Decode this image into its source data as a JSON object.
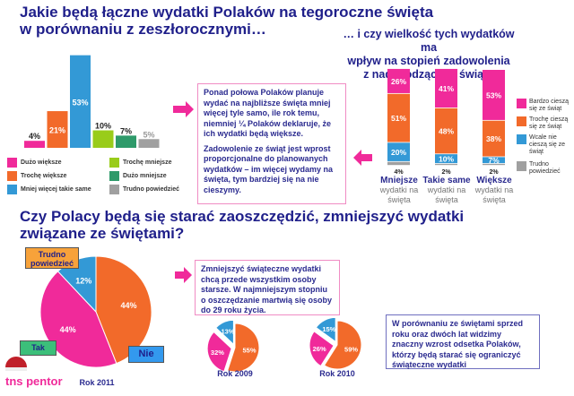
{
  "section1": {
    "title_line1": "Jakie będą łączne wydatki Polaków na tegoroczne święta",
    "title_line2": "w porównaniu z zeszłorocznymi…",
    "text_p1": "Ponad połowa Polaków planuje wydać na najbliższe święta mniej więcej tyle samo, ile rok temu, niemniej ¼ Polaków deklaruje, że ich wydatki będą większe.",
    "text_p2": "Zadowolenie ze świąt jest wprost proporcjonalne do planowanych wydatków – im więcej wydamy na święta, tym bardziej się na nie cieszymy."
  },
  "section1_right": {
    "title_line1": "… i czy wielkość tych wydatków ma",
    "title_line2": "wpływ na stopień zadowolenia",
    "title_line3": "z nadchodzących świąt?"
  },
  "section2": {
    "title_line1": "Czy Polacy będą się starać zaoszczędzić, zmniejszyć wydatki",
    "title_line2": "związane ze świętami?",
    "text_box1": "Zmniejszyć świąteczne wydatki chcą przede wszystkim osoby starsze. W najmniejszym stopniu o oszczędzanie martwią się osoby do 29 roku życia.",
    "text_box2": "W porównaniu ze świętami sprzed roku oraz dwóch lat widzimy znaczny wzrost odsetka Polaków, którzy będą starać się ograniczyć świąteczne wydatki"
  },
  "logo": "tns pentor",
  "chart_data": [
    {
      "type": "bar",
      "categories": [
        "Dużo większe",
        "Trochę większe",
        "Mniej więcej takie same",
        "Trochę mniejsze",
        "Dużo mniejsze",
        "Trudno powiedzieć"
      ],
      "values": [
        4,
        21,
        53,
        10,
        7,
        5
      ],
      "labels": [
        "4%",
        "21%",
        "53%",
        "10%",
        "7%",
        "5%"
      ],
      "colors": [
        "#f02a9a",
        "#f26a2a",
        "#3399d6",
        "#99cc1a",
        "#2e9a6a",
        "#a0a0a0"
      ],
      "legend": "bottom"
    },
    {
      "type": "bar",
      "stacked": true,
      "categories": [
        {
          "main": "Mniejsze",
          "sub": "wydatki na święta"
        },
        {
          "main": "Takie same",
          "sub": "wydatki na święta"
        },
        {
          "main": "Większe",
          "sub": "wydatki na święta"
        }
      ],
      "series": [
        {
          "name": "Bardzo cieszą się ze świąt",
          "color": "#f02a9a",
          "values": [
            26,
            41,
            53
          ],
          "labels": [
            "26%",
            "41%",
            "53%"
          ]
        },
        {
          "name": "Trochę cieszą się ze świąt",
          "color": "#f26a2a",
          "values": [
            51,
            48,
            38
          ],
          "labels": [
            "51%",
            "48%",
            "38%"
          ]
        },
        {
          "name": "Wcale nie cieszą się ze świąt",
          "color": "#3399d6",
          "values": [
            20,
            10,
            7
          ],
          "labels": [
            "20%",
            "10%",
            "7%"
          ]
        },
        {
          "name": "Trudno powiedzieć",
          "color": "#a0a0a0",
          "values": [
            4,
            2,
            2
          ],
          "labels": [
            "4%",
            "2%",
            "2%"
          ]
        }
      ],
      "legend": "right"
    },
    {
      "type": "pie",
      "title": "Rok 2011",
      "slices": [
        {
          "name": "Nie",
          "value": 44,
          "label": "44%",
          "color": "#f26a2a"
        },
        {
          "name": "Tak",
          "value": 44,
          "label": "44%",
          "color": "#f02a9a"
        },
        {
          "name": "Trudno powiedzieć",
          "value": 12,
          "label": "12%",
          "color": "#3399d6"
        }
      ]
    },
    {
      "type": "pie",
      "title": "Rok 2009",
      "slices": [
        {
          "name": "Nie",
          "value": 55,
          "label": "55%",
          "color": "#f26a2a"
        },
        {
          "name": "Tak",
          "value": 32,
          "label": "32%",
          "color": "#f02a9a"
        },
        {
          "name": "Trudno powiedzieć",
          "value": 13,
          "label": "13%",
          "color": "#3399d6"
        }
      ]
    },
    {
      "type": "pie",
      "title": "Rok 2010",
      "slices": [
        {
          "name": "Nie",
          "value": 59,
          "label": "59%",
          "color": "#f26a2a"
        },
        {
          "name": "Tak",
          "value": 26,
          "label": "26%",
          "color": "#f02a9a"
        },
        {
          "name": "Trudno powiedzieć",
          "value": 15,
          "label": "15%",
          "color": "#3399d6"
        }
      ]
    }
  ]
}
